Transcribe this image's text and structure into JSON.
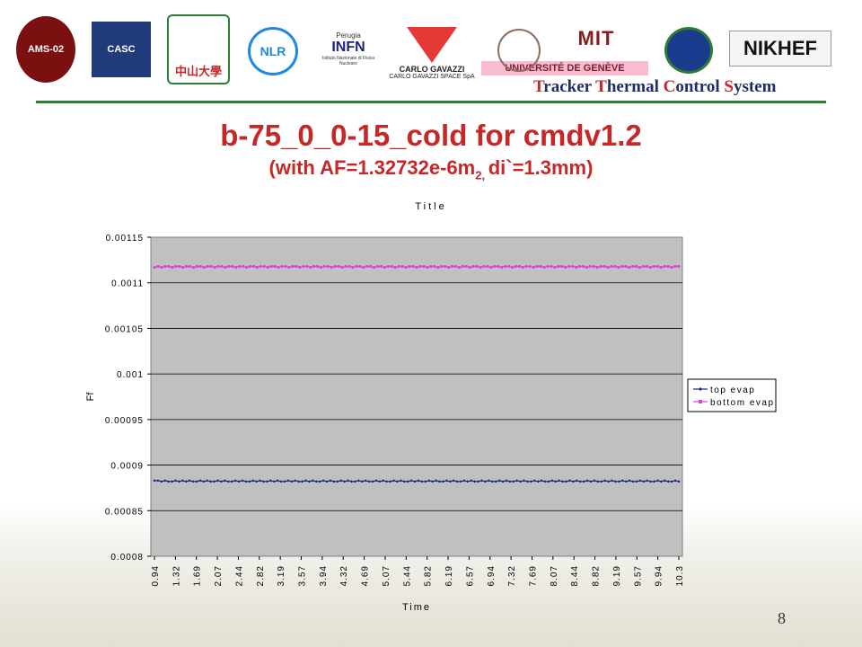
{
  "header": {
    "logos": [
      "AMS-02",
      "CASC",
      "中山大學",
      "NLR",
      "INFN",
      "CARLO GAVAZZI",
      "UNIVERSITÉ DE GENÈVE",
      "MIT",
      "NIKHEF"
    ],
    "logo_small_texts": [
      "Perugia",
      "Istituto Nazionale di Fisica Nucleare",
      "CARLO GAVAZZI SPACE SpA"
    ],
    "subtitle_parts": [
      {
        "cap": "T",
        "rest": "racker "
      },
      {
        "cap": "T",
        "rest": "hermal "
      },
      {
        "cap": "C",
        "rest": "ontrol "
      },
      {
        "cap": "S",
        "rest": "ystem"
      }
    ]
  },
  "slide": {
    "title": "b-75_0_0-15_cold for cmdv1.2",
    "subtitle_pre": "(with AF=1.32732e-6m",
    "subtitle_sup": "2, ",
    "subtitle_post": "di`=1.3mm)",
    "page_number": "8"
  },
  "colors": {
    "title": "#c62828",
    "header_rule": "#2e7d32",
    "series_top": "#1a237e",
    "series_bottom": "#e040e0",
    "plot_bg": "#c0c0c0"
  },
  "chart_data": {
    "type": "line",
    "title": "Title",
    "xlabel": "Time",
    "ylabel": "Ff",
    "ylim": [
      0.0008,
      0.00115
    ],
    "yticks": [
      "0.0008",
      "0.00085",
      "0.0009",
      "0.00095",
      "0.001",
      "0.00105",
      "0.0011",
      "0.00115"
    ],
    "xlim": [
      0.94,
      10.3
    ],
    "xticks": [
      "0.94",
      "1.32",
      "1.69",
      "2.07",
      "2.44",
      "2.82",
      "3.19",
      "3.57",
      "3.94",
      "4.32",
      "4.69",
      "5.07",
      "5.44",
      "5.82",
      "6.19",
      "6.57",
      "6.94",
      "7.32",
      "7.69",
      "8.07",
      "8.44",
      "8.82",
      "9.19",
      "9.57",
      "9.94",
      "10.3"
    ],
    "grid": true,
    "legend_position": "right",
    "series": [
      {
        "name": "top evap",
        "marker": "diamond",
        "values": [
          0.000883,
          0.000883,
          0.000882,
          0.000883,
          0.000882,
          0.000882,
          0.000883,
          0.000882,
          0.000883,
          0.000882,
          0.000883,
          0.000882,
          0.000882,
          0.000883,
          0.000882,
          0.000883,
          0.000882,
          0.000882,
          0.000883,
          0.000882,
          0.000883,
          0.000882,
          0.000882,
          0.000883,
          0.000882,
          0.000883,
          0.000882,
          0.000882,
          0.000883,
          0.000882,
          0.000883,
          0.000882,
          0.000882,
          0.000883,
          0.000882,
          0.000883,
          0.000882,
          0.000882,
          0.000883,
          0.000882,
          0.000883,
          0.000882,
          0.000882,
          0.000883,
          0.000882,
          0.000883,
          0.000882,
          0.000882,
          0.000883,
          0.000882,
          0.000883,
          0.000882,
          0.000882,
          0.000883,
          0.000882,
          0.000883,
          0.000882,
          0.000882,
          0.000883,
          0.000882,
          0.000883,
          0.000882,
          0.000882,
          0.000883,
          0.000882,
          0.000883,
          0.000882,
          0.000882,
          0.000883,
          0.000882,
          0.000883,
          0.000882,
          0.000882,
          0.000883,
          0.000882,
          0.000883,
          0.000882,
          0.000882,
          0.000883,
          0.000882,
          0.000883,
          0.000882,
          0.000882,
          0.000883,
          0.000882,
          0.000883,
          0.000882,
          0.000882,
          0.000883,
          0.000882,
          0.000883,
          0.000882,
          0.000882,
          0.000883,
          0.000882,
          0.000883,
          0.000882,
          0.000882,
          0.000883,
          0.000882,
          0.000883,
          0.000882,
          0.000882,
          0.000883,
          0.000882,
          0.000883,
          0.000882,
          0.000882,
          0.000883,
          0.000882,
          0.000883,
          0.000882,
          0.000882,
          0.000883,
          0.000882,
          0.000883,
          0.000882,
          0.000882,
          0.000883,
          0.000882,
          0.000883,
          0.000882,
          0.000882,
          0.000883,
          0.000882,
          0.000883,
          0.000882,
          0.000882,
          0.000883,
          0.000882,
          0.000883,
          0.000882,
          0.000882,
          0.000883,
          0.000882,
          0.000883,
          0.000882,
          0.000882,
          0.000883,
          0.000882,
          0.000883,
          0.000882,
          0.000882,
          0.000883,
          0.000882,
          0.000883,
          0.000882,
          0.000882,
          0.000883,
          0.000882
        ]
      },
      {
        "name": "bottom evap",
        "marker": "square",
        "values": [
          0.001117,
          0.001118,
          0.001117,
          0.001118,
          0.001118,
          0.001117,
          0.001118,
          0.001118,
          0.001117,
          0.001118,
          0.001118,
          0.001117,
          0.001118,
          0.001118,
          0.001117,
          0.001118,
          0.001118,
          0.001117,
          0.001118,
          0.001118,
          0.001117,
          0.001118,
          0.001118,
          0.001117,
          0.001118,
          0.001118,
          0.001117,
          0.001118,
          0.001118,
          0.001117,
          0.001118,
          0.001118,
          0.001117,
          0.001118,
          0.001118,
          0.001117,
          0.001118,
          0.001118,
          0.001117,
          0.001118,
          0.001118,
          0.001117,
          0.001118,
          0.001118,
          0.001117,
          0.001118,
          0.001118,
          0.001117,
          0.001118,
          0.001118,
          0.001117,
          0.001118,
          0.001118,
          0.001117,
          0.001118,
          0.001118,
          0.001117,
          0.001118,
          0.001118,
          0.001117,
          0.001118,
          0.001118,
          0.001117,
          0.001118,
          0.001118,
          0.001117,
          0.001118,
          0.001118,
          0.001117,
          0.001118,
          0.001118,
          0.001117,
          0.001118,
          0.001118,
          0.001117,
          0.001118,
          0.001118,
          0.001117,
          0.001118,
          0.001118,
          0.001117,
          0.001118,
          0.001118,
          0.001117,
          0.001118,
          0.001118,
          0.001117,
          0.001118,
          0.001118,
          0.001117,
          0.001118,
          0.001118,
          0.001117,
          0.001118,
          0.001118,
          0.001117,
          0.001118,
          0.001118,
          0.001117,
          0.001118,
          0.001118,
          0.001117,
          0.001118,
          0.001118,
          0.001117,
          0.001118,
          0.001118,
          0.001117,
          0.001118,
          0.001118,
          0.001117,
          0.001118,
          0.001118,
          0.001117,
          0.001118,
          0.001118,
          0.001117,
          0.001118,
          0.001118,
          0.001117,
          0.001118,
          0.001118,
          0.001117,
          0.001118,
          0.001118,
          0.001117,
          0.001118,
          0.001118,
          0.001117,
          0.001118,
          0.001118,
          0.001117,
          0.001118,
          0.001118,
          0.001117,
          0.001118,
          0.001118,
          0.001117,
          0.001118,
          0.001118,
          0.001117,
          0.001118,
          0.001118,
          0.001117,
          0.001118,
          0.001118,
          0.001117,
          0.001118,
          0.001118
        ]
      }
    ]
  }
}
